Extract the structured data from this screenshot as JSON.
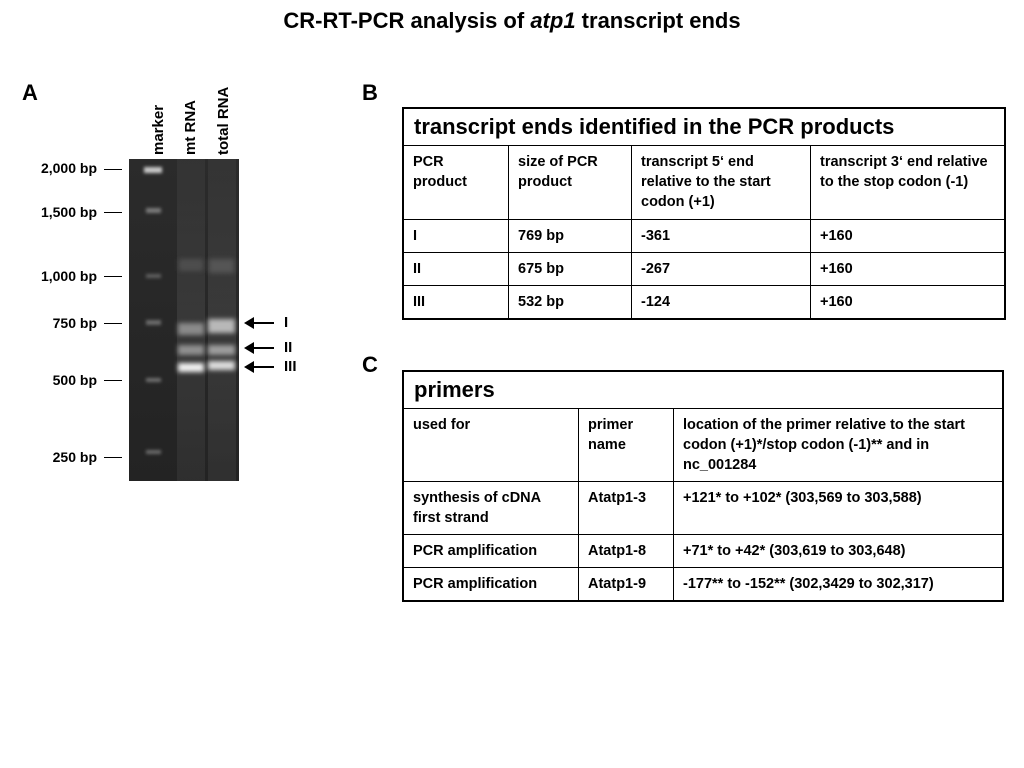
{
  "title": {
    "prefix": "CR-RT-PCR analysis of ",
    "gene": "atp1",
    "suffix": " transcript ends"
  },
  "panels": {
    "a": "A",
    "b": "B",
    "c": "C"
  },
  "gel": {
    "lanes": [
      "marker",
      "mt RNA",
      "total RNA"
    ],
    "markers": [
      "2,000 bp",
      "1,500 bp",
      "1,000 bp",
      "750 bp",
      "500 bp",
      "250 bp"
    ],
    "bands": [
      "I",
      "II",
      "III"
    ]
  },
  "table_b": {
    "title": "transcript ends identified in the PCR products",
    "headers": [
      "PCR product",
      "size of PCR product",
      "transcript 5‘ end relative to the start codon (+1)",
      "transcript 3‘ end relative to the stop codon (-1)"
    ],
    "rows": [
      [
        "I",
        "769 bp",
        "-361",
        "+160"
      ],
      [
        "II",
        "675 bp",
        "-267",
        "+160"
      ],
      [
        "III",
        "532 bp",
        "-124",
        "+160"
      ]
    ]
  },
  "table_c": {
    "title": "primers",
    "headers": [
      "used for",
      "primer name",
      "location of the primer relative to the start codon (+1)*/stop codon (-1)** and in nc_001284"
    ],
    "rows": [
      [
        "synthesis of cDNA first strand",
        "Atatp1-3",
        "+121* to +102* (303,569 to 303,588)"
      ],
      [
        "PCR amplification",
        "Atatp1-8",
        "+71* to +42* (303,619 to 303,648)"
      ],
      [
        "PCR amplification",
        "Atatp1-9",
        "-177** to -152** (302,3429  to 302,317)"
      ]
    ]
  }
}
